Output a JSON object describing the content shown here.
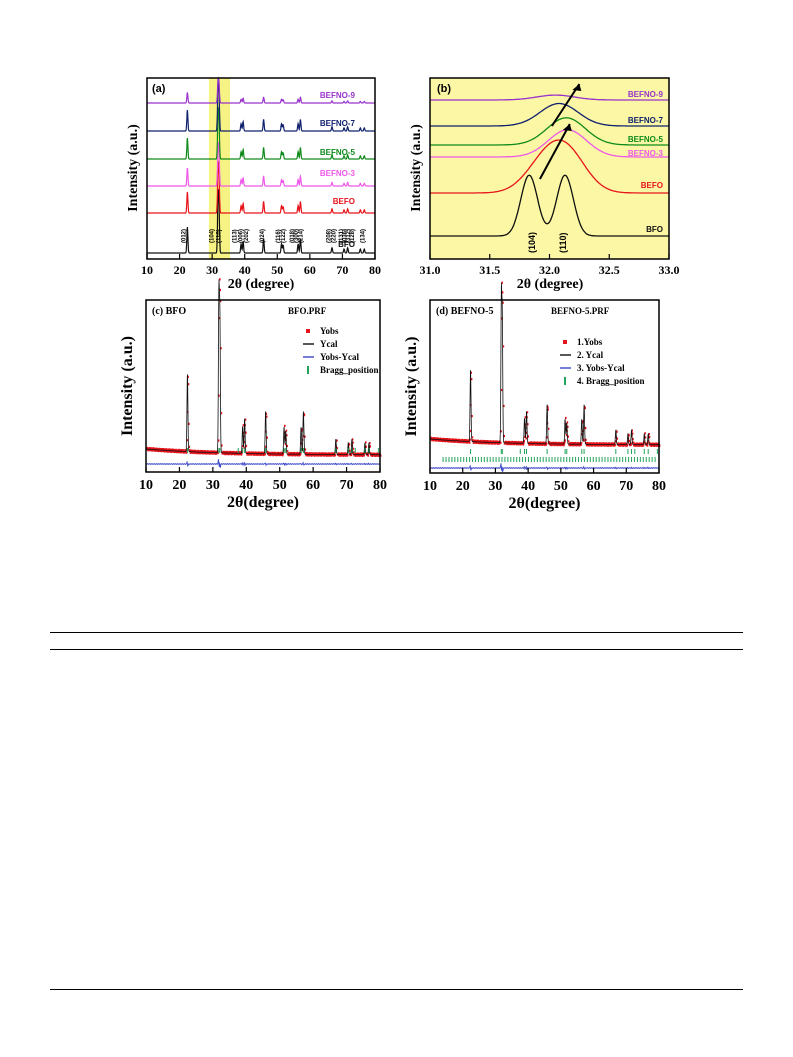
{
  "colors": {
    "bfo": "#111111",
    "befo": "#e8141b",
    "befno3": "#ee58e8",
    "befno5": "#0f8a1b",
    "befno7": "#10216e",
    "befno9": "#9933cc",
    "highlight": "#f6f284",
    "yellow_bg": "#fbf7a4",
    "bragg": "#22a35a",
    "diff": "#3a46c8"
  },
  "chart_data": [
    {
      "panel": "a",
      "type": "line",
      "label": "(a)",
      "xlabel": "2θ (degree)",
      "ylabel": "Intensity (a.u.)",
      "xlim": [
        10,
        80
      ],
      "xticks": [
        "10",
        "20",
        "30",
        "40",
        "50",
        "60",
        "70",
        "80"
      ],
      "highlight_range": [
        29,
        35.5
      ],
      "series": [
        {
          "name": "BFO",
          "color": "#111111"
        },
        {
          "name": "BEFO",
          "color": "#e8141b"
        },
        {
          "name": "BEFNO-3",
          "color": "#ee58e8"
        },
        {
          "name": "BEFNO-5",
          "color": "#0f8a1b"
        },
        {
          "name": "BEFNO-7",
          "color": "#10216e"
        },
        {
          "name": "BEFNO-9",
          "color": "#9933cc"
        }
      ],
      "peaks": [
        {
          "x": 22.4,
          "h": 1.0
        },
        {
          "x": 31.8,
          "h": 2.0
        },
        {
          "x": 32.1,
          "h": 1.7
        },
        {
          "x": 38.9,
          "h": 0.35
        },
        {
          "x": 39.5,
          "h": 0.45
        },
        {
          "x": 45.8,
          "h": 0.55
        },
        {
          "x": 51.3,
          "h": 0.35
        },
        {
          "x": 51.8,
          "h": 0.3
        },
        {
          "x": 56.4,
          "h": 0.35
        },
        {
          "x": 57.1,
          "h": 0.55
        },
        {
          "x": 66.8,
          "h": 0.2
        },
        {
          "x": 70.5,
          "h": 0.15
        },
        {
          "x": 71.6,
          "h": 0.2
        },
        {
          "x": 75.5,
          "h": 0.15
        },
        {
          "x": 76.7,
          "h": 0.15
        }
      ],
      "peak_labels": [
        {
          "x": 21.8,
          "text": "(012)"
        },
        {
          "x": 30.4,
          "text": "(104)"
        },
        {
          "x": 32.6,
          "text": "(110)"
        },
        {
          "x": 37.5,
          "text": "(113)"
        },
        {
          "x": 39.3,
          "text": "(006)"
        },
        {
          "x": 41.0,
          "text": "(202)"
        },
        {
          "x": 45.9,
          "text": "(024)"
        },
        {
          "x": 50.9,
          "text": "(116)"
        },
        {
          "x": 52.4,
          "text": "(122)"
        },
        {
          "x": 55.1,
          "text": "(018)"
        },
        {
          "x": 56.4,
          "text": "(300)"
        },
        {
          "x": 57.8,
          "text": "(214)"
        },
        {
          "x": 66.4,
          "text": "(208)"
        },
        {
          "x": 67.8,
          "text": "(220)"
        },
        {
          "x": 70.2,
          "text": "(131)"
        },
        {
          "x": 71.3,
          "text": "(036)"
        },
        {
          "x": 72.4,
          "text": "(312)"
        },
        {
          "x": 73.6,
          "text": "(128)"
        },
        {
          "x": 76.7,
          "text": "(134)"
        }
      ]
    },
    {
      "panel": "b",
      "type": "line",
      "label": "(b)",
      "xlabel": "2θ (degree)",
      "ylabel": "Intensity (a.u.)",
      "xlim": [
        31.0,
        33.0
      ],
      "xticks": [
        "31.0",
        "31.5",
        "32.0",
        "32.5",
        "33.0"
      ],
      "series": [
        {
          "name": "BFO",
          "color": "#111111",
          "peaks": [
            [
              31.83,
              0.95
            ],
            [
              32.13,
              0.95
            ]
          ]
        },
        {
          "name": "BEFO",
          "color": "#e8141b",
          "peaks": [
            [
              31.95,
              0.6
            ],
            [
              32.15,
              0.85
            ]
          ]
        },
        {
          "name": "BEFNO-3",
          "color": "#ee58e8",
          "peaks": [
            [
              32.15,
              0.85
            ]
          ]
        },
        {
          "name": "BEFNO-5",
          "color": "#0f8a1b",
          "peaks": [
            [
              32.14,
              0.85
            ]
          ]
        },
        {
          "name": "BEFNO-7",
          "color": "#10216e",
          "peaks": [
            [
              32.08,
              0.75
            ]
          ]
        },
        {
          "name": "BEFNO-9",
          "color": "#9933cc",
          "peaks": [
            [
              32.05,
              0.35
            ]
          ]
        }
      ],
      "annotations": [
        "(104)",
        "(110)"
      ]
    },
    {
      "panel": "c",
      "type": "scatter",
      "label": "(c) BFO",
      "file_label": "BFO.PRF",
      "xlabel": "2θ(degree)",
      "ylabel": "Intensity (a.u.)",
      "xlim": [
        10,
        80
      ],
      "xticks": [
        "10",
        "20",
        "30",
        "40",
        "50",
        "60",
        "70",
        "80"
      ],
      "legend": [
        "Yobs",
        "Ycal",
        "Yobs-Ycal",
        "Bragg_position"
      ],
      "bragg_positions": [
        22.4,
        31.8,
        32.1,
        37.6,
        38.9,
        39.5,
        45.8,
        51.3,
        51.8,
        56.4,
        57.1,
        66.8,
        70.5,
        71.6,
        72.6,
        75.5,
        76.7,
        79.5
      ]
    },
    {
      "panel": "d",
      "type": "scatter",
      "label": "(d) BEFNO-5",
      "file_label": "BEFNO-5.PRF",
      "xlabel": "2θ(degree)",
      "ylabel": "Intensity (a.u.)",
      "xlim": [
        10,
        80
      ],
      "xticks": [
        "10",
        "20",
        "30",
        "40",
        "50",
        "60",
        "70",
        "80"
      ],
      "legend": [
        "1.Yobs",
        "2. Ycal",
        "3. Yobs-Ycal",
        "4. Bragg_position"
      ]
    }
  ]
}
